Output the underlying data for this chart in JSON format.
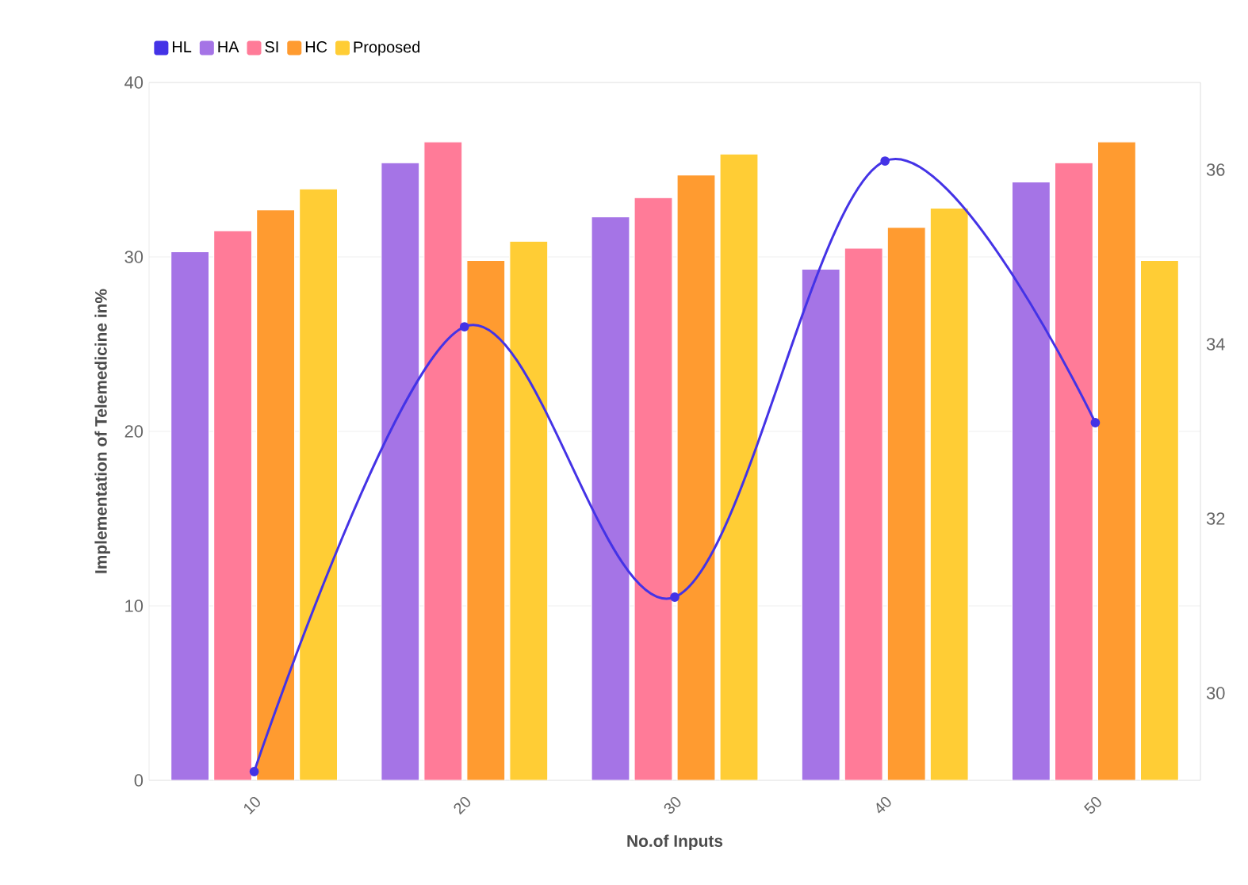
{
  "chart_data": {
    "type": "bar",
    "xlabel": "No.of Inputs",
    "ylabel": "Implementation of Telemedicine in%",
    "categories": [
      "10",
      "20",
      "30",
      "40",
      "50"
    ],
    "series": [
      {
        "name": "HL",
        "type": "line",
        "axis": "y2",
        "color": "#4433e6",
        "marker": "circle",
        "line_style": "solid",
        "values": [
          29.1,
          34.2,
          31.1,
          36.1,
          33.1
        ]
      },
      {
        "name": "HA",
        "color": "#a574e6",
        "values": [
          30.3,
          35.4,
          32.3,
          29.3,
          34.3
        ]
      },
      {
        "name": "SI",
        "color": "#ff7b98",
        "values": [
          31.5,
          36.6,
          33.4,
          30.5,
          35.4
        ]
      },
      {
        "name": "HC",
        "color": "#ff9b30",
        "values": [
          32.7,
          29.8,
          34.7,
          31.7,
          36.6
        ]
      },
      {
        "name": "Proposed",
        "color": "#ffcd35",
        "values": [
          33.9,
          30.9,
          35.9,
          32.8,
          29.8
        ]
      }
    ],
    "ylim": [
      0,
      40
    ],
    "yticks": [
      0,
      10,
      20,
      30,
      40
    ],
    "y2lim": [
      29,
      37
    ],
    "y2ticks": [
      30,
      32,
      34,
      36
    ],
    "grid": "y",
    "legend": "top left"
  }
}
